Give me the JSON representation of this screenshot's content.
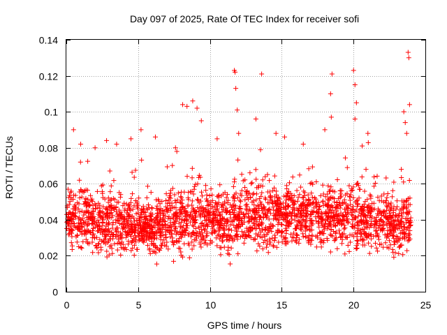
{
  "chart_data": {
    "type": "scatter",
    "title": "Day 097 of 2025, Rate Of TEC Index for receiver sofi",
    "xlabel": "GPS time / hours",
    "ylabel": "ROTI / TECUs",
    "xlim": [
      0,
      25
    ],
    "ylim": [
      0,
      0.14
    ],
    "xticks": [
      "0",
      "5",
      "10",
      "15",
      "20",
      "25"
    ],
    "yticks": [
      "0",
      "0.02",
      "0.04",
      "0.06",
      "0.08",
      "0.1",
      "0.12",
      "0.14"
    ],
    "grid": true,
    "marker": "+",
    "series": [
      {
        "name": "ROTI",
        "color": "#ff0000",
        "base_points": [
          [
            0.5,
            0.09
          ],
          [
            1.0,
            0.082
          ],
          [
            2.0,
            0.08
          ],
          [
            2.8,
            0.084
          ],
          [
            3.5,
            0.082
          ],
          [
            4.5,
            0.085
          ],
          [
            5.2,
            0.09
          ],
          [
            6.2,
            0.086
          ],
          [
            7.6,
            0.08
          ],
          [
            8.1,
            0.104
          ],
          [
            8.4,
            0.103
          ],
          [
            8.8,
            0.106
          ],
          [
            9.1,
            0.102
          ],
          [
            9.4,
            0.095
          ],
          [
            10.5,
            0.085
          ],
          [
            11.7,
            0.123
          ],
          [
            11.75,
            0.122
          ],
          [
            11.8,
            0.113
          ],
          [
            11.9,
            0.101
          ],
          [
            12.0,
            0.088
          ],
          [
            13.2,
            0.096
          ],
          [
            13.6,
            0.121
          ],
          [
            14.6,
            0.088
          ],
          [
            15.2,
            0.086
          ],
          [
            16.5,
            0.082
          ],
          [
            18.0,
            0.09
          ],
          [
            18.5,
            0.121
          ],
          [
            18.4,
            0.11
          ],
          [
            18.45,
            0.097
          ],
          [
            20.0,
            0.123
          ],
          [
            20.1,
            0.115
          ],
          [
            20.2,
            0.105
          ],
          [
            20.1,
            0.096
          ],
          [
            20.6,
            0.081
          ],
          [
            21.0,
            0.088
          ],
          [
            23.5,
            0.1
          ],
          [
            23.6,
            0.094
          ],
          [
            23.8,
            0.133
          ],
          [
            23.85,
            0.13
          ],
          [
            23.9,
            0.104
          ],
          [
            23.7,
            0.088
          ]
        ],
        "density_profile": {
          "hours": [
            0,
            1,
            2,
            3,
            4,
            5,
            6,
            7,
            8,
            9,
            10,
            11,
            12,
            13,
            14,
            15,
            16,
            17,
            18,
            19,
            20,
            21,
            22,
            23,
            24
          ],
          "center": [
            0.04,
            0.04,
            0.038,
            0.038,
            0.037,
            0.036,
            0.035,
            0.036,
            0.04,
            0.042,
            0.04,
            0.039,
            0.041,
            0.042,
            0.041,
            0.043,
            0.042,
            0.041,
            0.042,
            0.041,
            0.042,
            0.04,
            0.038,
            0.036,
            0.04
          ],
          "spread": [
            0.014,
            0.014,
            0.013,
            0.013,
            0.013,
            0.012,
            0.012,
            0.013,
            0.015,
            0.016,
            0.014,
            0.014,
            0.015,
            0.015,
            0.014,
            0.015,
            0.014,
            0.014,
            0.014,
            0.014,
            0.015,
            0.014,
            0.013,
            0.013,
            0.014
          ]
        }
      }
    ]
  }
}
